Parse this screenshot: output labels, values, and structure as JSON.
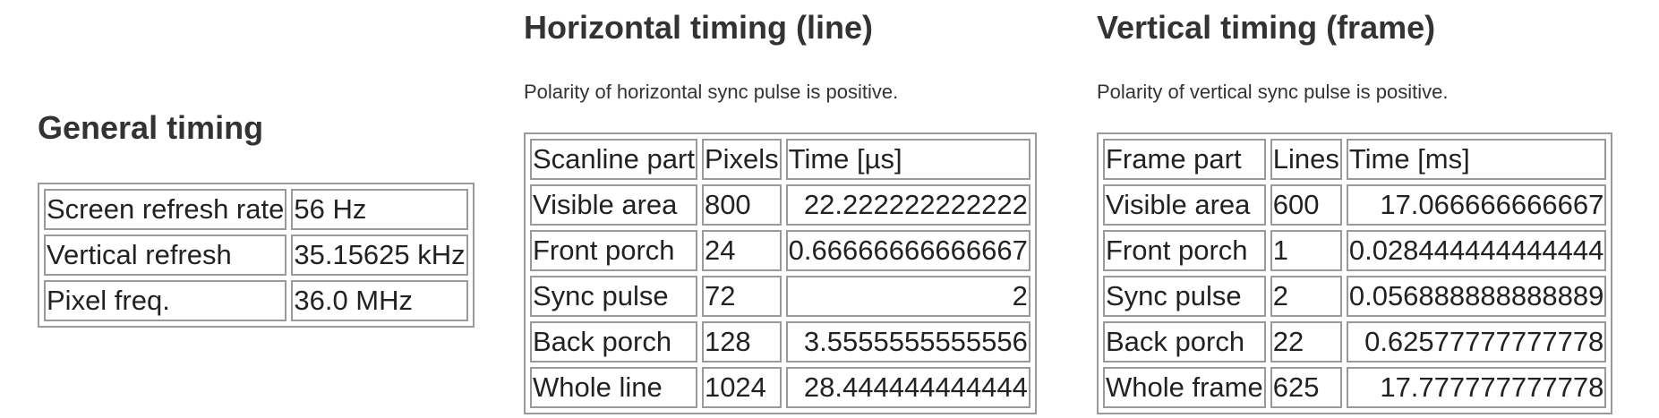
{
  "general": {
    "title": "General timing",
    "rows": [
      {
        "label": "Screen refresh rate",
        "value": "56 Hz"
      },
      {
        "label": "Vertical refresh",
        "value": "35.15625 kHz"
      },
      {
        "label": "Pixel freq.",
        "value": "36.0 MHz"
      }
    ]
  },
  "horizontal": {
    "title": "Horizontal timing (line)",
    "note": "Polarity of horizontal sync pulse is positive.",
    "headers": [
      "Scanline part",
      "Pixels",
      "Time [µs]"
    ],
    "rows": [
      {
        "part": "Visible area",
        "count": "800",
        "time": "22.222222222222"
      },
      {
        "part": "Front porch",
        "count": "24",
        "time": "0.66666666666667"
      },
      {
        "part": "Sync pulse",
        "count": "72",
        "time": "2"
      },
      {
        "part": "Back porch",
        "count": "128",
        "time": "3.5555555555556"
      },
      {
        "part": "Whole line",
        "count": "1024",
        "time": "28.444444444444"
      }
    ]
  },
  "vertical": {
    "title": "Vertical timing (frame)",
    "note": "Polarity of vertical sync pulse is positive.",
    "headers": [
      "Frame part",
      "Lines",
      "Time [ms]"
    ],
    "rows": [
      {
        "part": "Visible area",
        "count": "600",
        "time": "17.066666666667"
      },
      {
        "part": "Front porch",
        "count": "1",
        "time": "0.028444444444444"
      },
      {
        "part": "Sync pulse",
        "count": "2",
        "time": "0.056888888888889"
      },
      {
        "part": "Back porch",
        "count": "22",
        "time": "0.62577777777778"
      },
      {
        "part": "Whole frame",
        "count": "625",
        "time": "17.777777777778"
      }
    ]
  }
}
